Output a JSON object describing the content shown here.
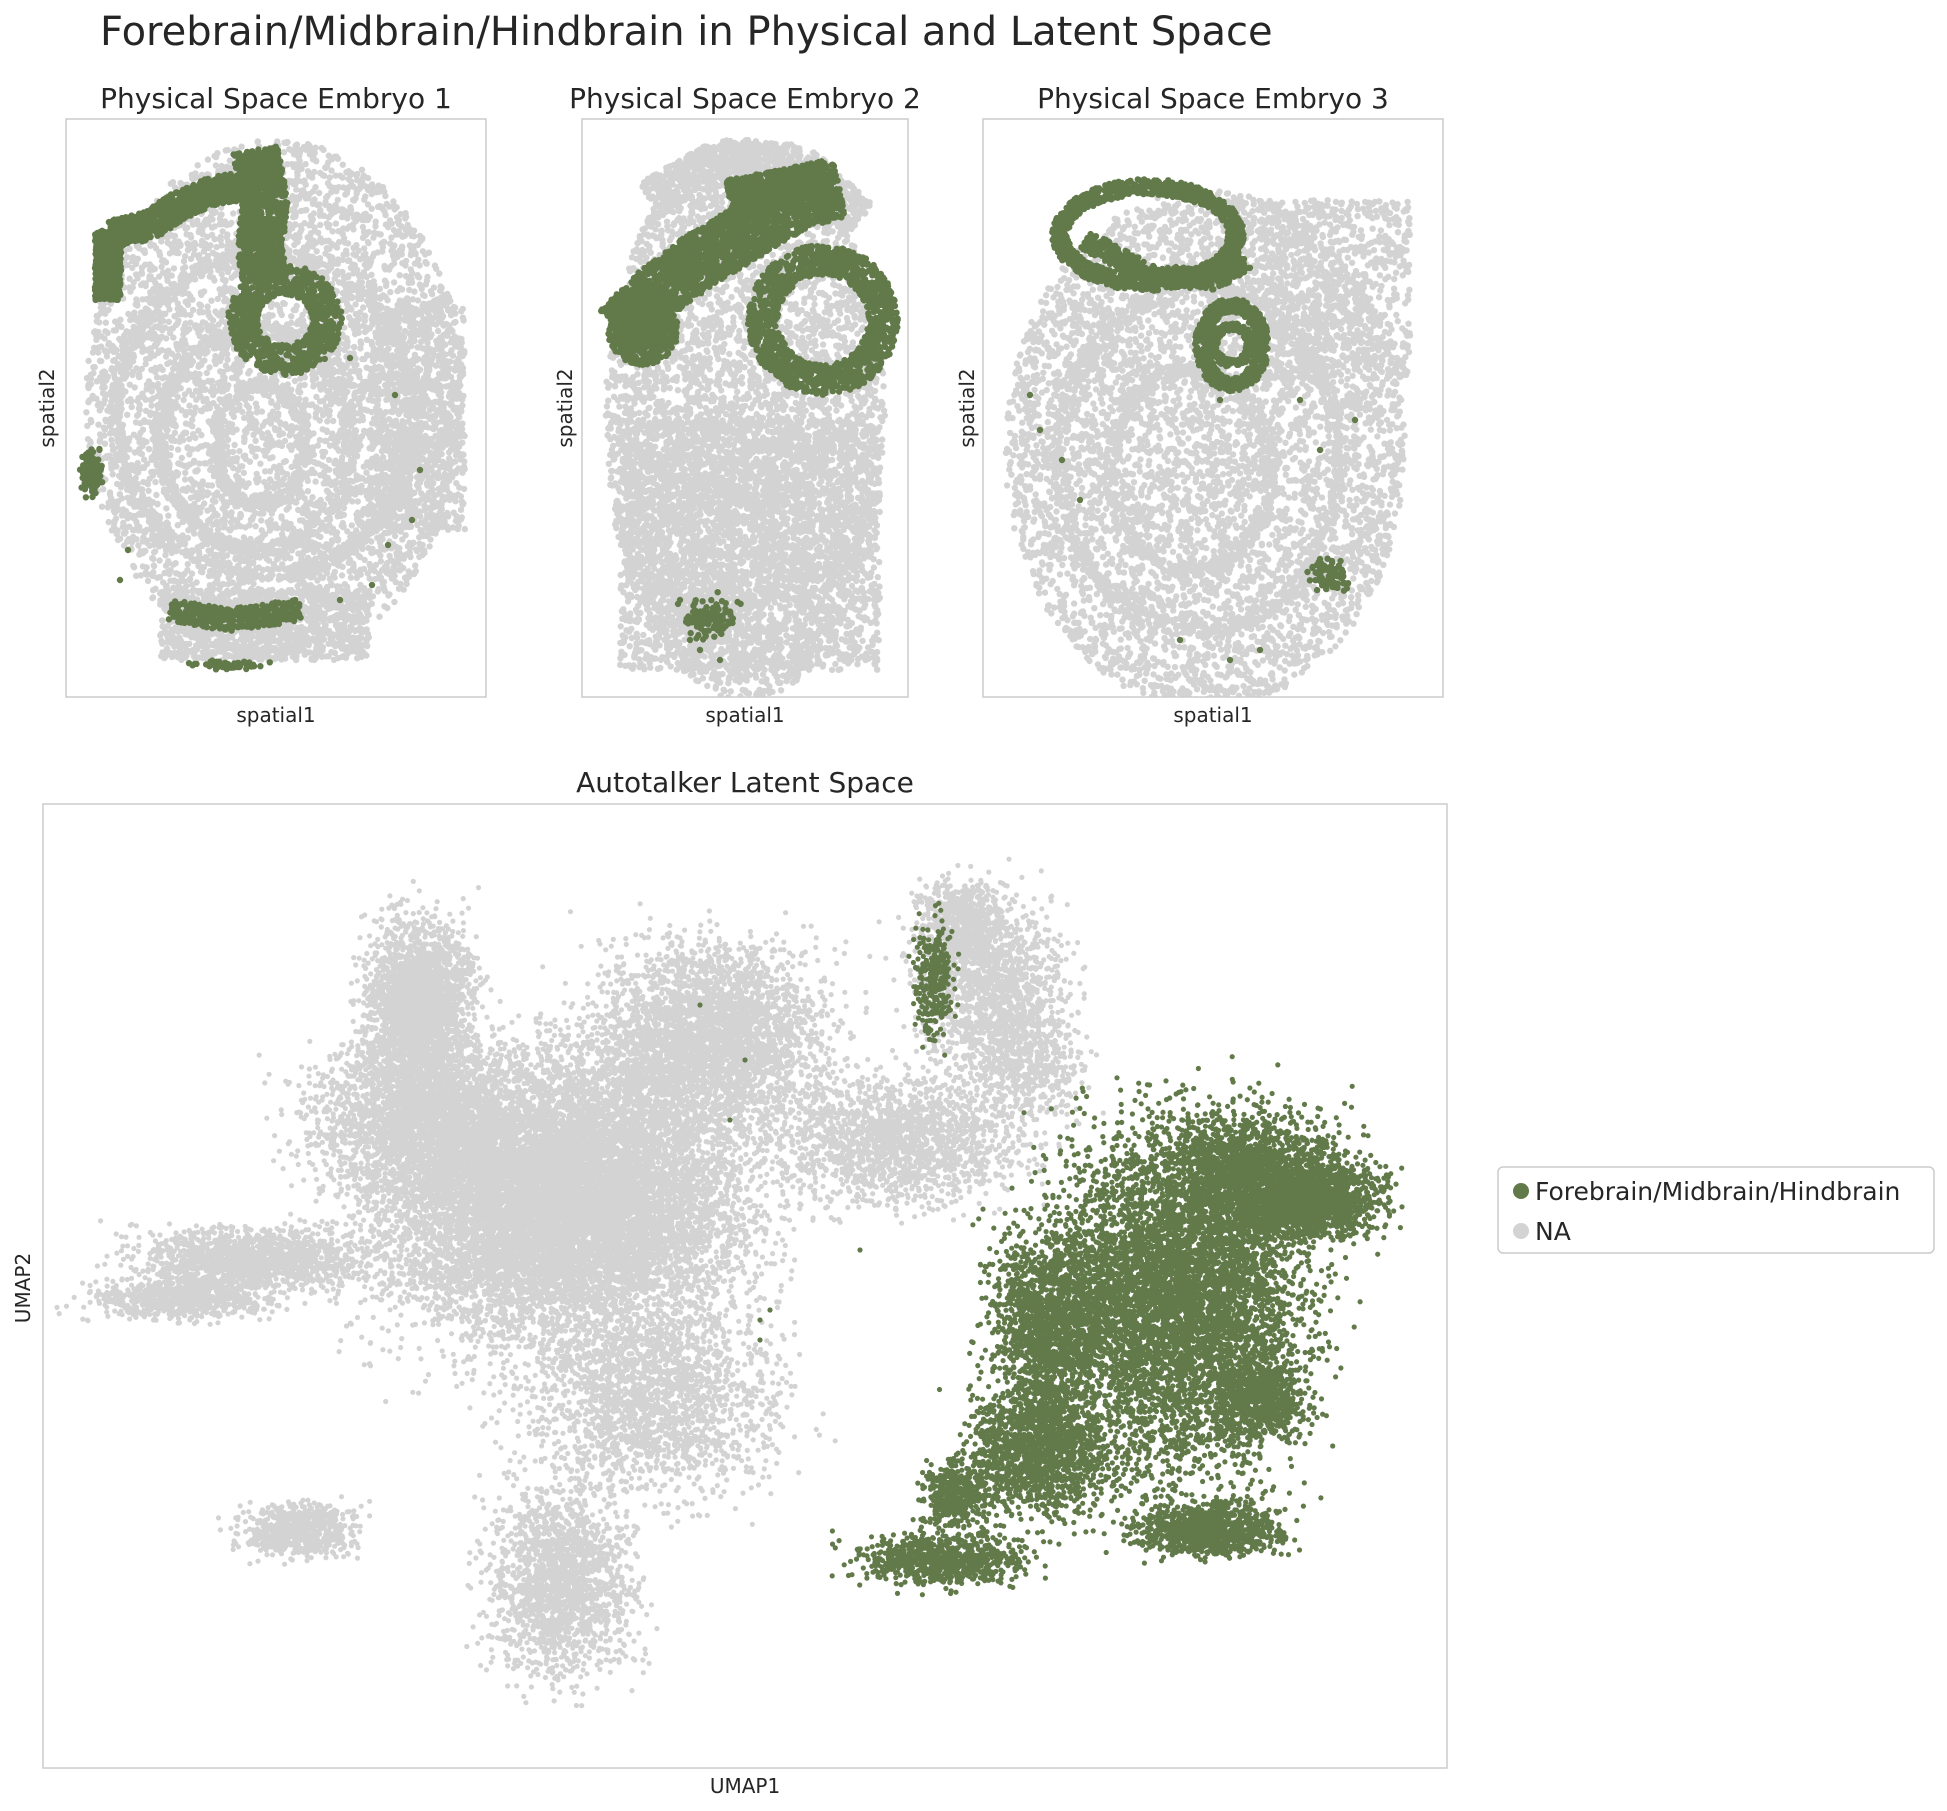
{
  "figure": {
    "title": "Forebrain/Midbrain/Hindbrain in Physical and Latent Space",
    "colors": {
      "highlight": "#627a4a",
      "background": "#d3d3d3"
    }
  },
  "chart_data": [
    {
      "type": "scatter",
      "title": "Physical Space Embryo 1",
      "xlabel": "spatial1",
      "ylabel": "spatial2",
      "grid": false,
      "series": [
        {
          "name": "Forebrain/Midbrain/Hindbrain",
          "color": "#627a4a"
        },
        {
          "name": "NA",
          "color": "#d3d3d3"
        }
      ]
    },
    {
      "type": "scatter",
      "title": "Physical Space Embryo 2",
      "xlabel": "spatial1",
      "ylabel": "spatial2",
      "grid": false,
      "series": [
        {
          "name": "Forebrain/Midbrain/Hindbrain",
          "color": "#627a4a"
        },
        {
          "name": "NA",
          "color": "#d3d3d3"
        }
      ]
    },
    {
      "type": "scatter",
      "title": "Physical Space Embryo 3",
      "xlabel": "spatial1",
      "ylabel": "spatial2",
      "grid": false,
      "series": [
        {
          "name": "Forebrain/Midbrain/Hindbrain",
          "color": "#627a4a"
        },
        {
          "name": "NA",
          "color": "#d3d3d3"
        }
      ]
    },
    {
      "type": "scatter",
      "title": "Autotalker Latent Space",
      "xlabel": "UMAP1",
      "ylabel": "UMAP2",
      "grid": false,
      "legend": "right",
      "series": [
        {
          "name": "Forebrain/Midbrain/Hindbrain",
          "color": "#627a4a"
        },
        {
          "name": "NA",
          "color": "#d3d3d3"
        }
      ]
    }
  ],
  "legend": {
    "entries": [
      {
        "label": "Forebrain/Midbrain/Hindbrain",
        "color": "#627a4a"
      },
      {
        "label": "NA",
        "color": "#d3d3d3"
      }
    ]
  }
}
